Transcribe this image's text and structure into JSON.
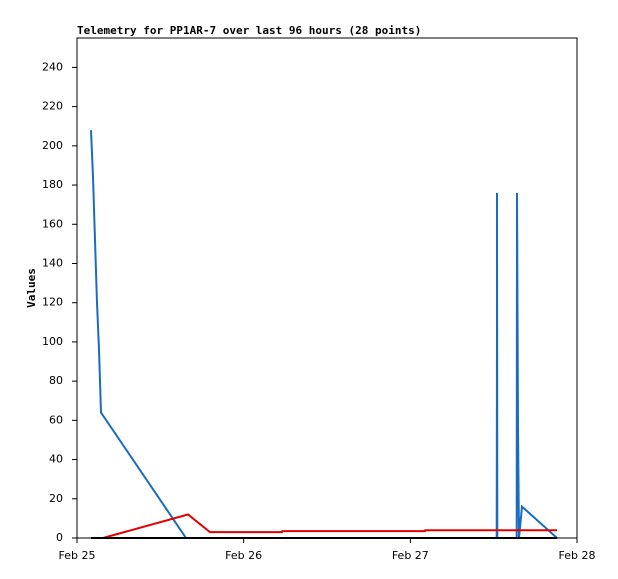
{
  "chart_data": {
    "type": "line",
    "title": "Telemetry for PP1AR-7 over last 96 hours (28 points)",
    "y_label": "Values",
    "xlim": [
      25,
      28
    ],
    "xticks": [
      {
        "value": 25,
        "label": "Feb 25"
      },
      {
        "value": 26,
        "label": "Feb 26"
      },
      {
        "value": 27,
        "label": "Feb 27"
      },
      {
        "value": 28,
        "label": "Feb 28"
      }
    ],
    "ylim": [
      0,
      255
    ],
    "yticks": [
      0,
      20,
      40,
      60,
      80,
      100,
      120,
      140,
      160,
      180,
      200,
      220,
      240
    ],
    "series": [
      {
        "color": "#1a6cc0",
        "x": [
          25.084,
          25.096,
          25.108,
          25.12,
          25.132,
          25.144,
          25.654,
          27.518,
          27.52,
          27.52,
          27.522,
          27.638,
          27.64,
          27.646,
          27.652,
          27.67,
          27.88
        ],
        "values": [
          208,
          184,
          152,
          120,
          96,
          64,
          0,
          0,
          104,
          176,
          0,
          0,
          176,
          56,
          0,
          16,
          0
        ]
      },
      {
        "color": "#e00000",
        "x": [
          25.156,
          25.666,
          25.798,
          26.23,
          26.232,
          27.088,
          27.09,
          27.88
        ],
        "values": [
          0,
          12,
          3,
          3,
          3.5,
          3.5,
          4,
          4
        ]
      },
      {
        "color": "#000000",
        "x": [
          25.084,
          27.88
        ],
        "values": [
          0,
          0
        ]
      }
    ]
  }
}
